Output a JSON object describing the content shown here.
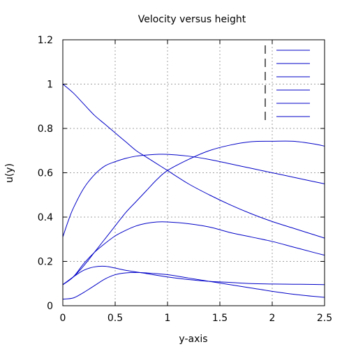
{
  "chart_data": {
    "type": "line",
    "title": "Velocity versus height",
    "xlabel": "y-axis",
    "ylabel": "u(y)",
    "xlim": [
      0,
      2.5
    ],
    "ylim": [
      0,
      1.2
    ],
    "xticks": [
      "0",
      "0.5",
      "1",
      "1.5",
      "2",
      "2.5"
    ],
    "yticks": [
      "0",
      "0.2",
      "0.4",
      "0.6",
      "0.8",
      "1",
      "1.2"
    ],
    "grid": true,
    "legend_position": "top-right",
    "line_color": "#0000c8",
    "series": [
      {
        "x": [
          0,
          0.1,
          0.2,
          0.3,
          0.4,
          0.5,
          0.6,
          0.7,
          0.8,
          0.9,
          1.0,
          1.2,
          1.4,
          1.6,
          1.8,
          2.0,
          2.2,
          2.4,
          2.5
        ],
        "values": [
          1.0,
          0.96,
          0.91,
          0.86,
          0.82,
          0.78,
          0.74,
          0.7,
          0.67,
          0.64,
          0.61,
          0.55,
          0.5,
          0.455,
          0.415,
          0.38,
          0.35,
          0.32,
          0.305
        ]
      },
      {
        "x": [
          0,
          0.05,
          0.1,
          0.2,
          0.3,
          0.4,
          0.5,
          0.6,
          0.7,
          0.8,
          0.9,
          1.0,
          1.2,
          1.4,
          1.6,
          1.8,
          2.0,
          2.2,
          2.4,
          2.5
        ],
        "values": [
          0.31,
          0.38,
          0.44,
          0.53,
          0.59,
          0.63,
          0.65,
          0.665,
          0.675,
          0.68,
          0.683,
          0.683,
          0.675,
          0.66,
          0.64,
          0.62,
          0.6,
          0.58,
          0.56,
          0.55
        ]
      },
      {
        "x": [
          0,
          0.1,
          0.2,
          0.3,
          0.4,
          0.5,
          0.6,
          0.7,
          0.8,
          0.9,
          1.0,
          1.2,
          1.4,
          1.6,
          1.8,
          2.0,
          2.2,
          2.4,
          2.5
        ],
        "values": [
          0.095,
          0.13,
          0.18,
          0.24,
          0.3,
          0.36,
          0.42,
          0.47,
          0.52,
          0.57,
          0.61,
          0.66,
          0.7,
          0.725,
          0.74,
          0.742,
          0.742,
          0.73,
          0.72
        ]
      },
      {
        "x": [
          0,
          0.1,
          0.2,
          0.3,
          0.4,
          0.5,
          0.6,
          0.7,
          0.8,
          0.9,
          1.0,
          1.2,
          1.4,
          1.6,
          1.8,
          2.0,
          2.2,
          2.4,
          2.5
        ],
        "values": [
          0.095,
          0.13,
          0.19,
          0.24,
          0.28,
          0.315,
          0.34,
          0.36,
          0.372,
          0.378,
          0.378,
          0.37,
          0.355,
          0.33,
          0.31,
          0.29,
          0.265,
          0.24,
          0.228
        ]
      },
      {
        "x": [
          0,
          0.1,
          0.2,
          0.3,
          0.4,
          0.5,
          0.6,
          0.8,
          1.0,
          1.2,
          1.4,
          1.6,
          1.8,
          2.0,
          2.2,
          2.4,
          2.5
        ],
        "values": [
          0.095,
          0.13,
          0.16,
          0.175,
          0.178,
          0.17,
          0.16,
          0.145,
          0.13,
          0.118,
          0.11,
          0.105,
          0.1,
          0.098,
          0.097,
          0.096,
          0.095
        ]
      },
      {
        "x": [
          0,
          0.1,
          0.2,
          0.3,
          0.4,
          0.5,
          0.6,
          0.7,
          0.8,
          1.0,
          1.2,
          1.4,
          1.6,
          1.8,
          2.0,
          2.2,
          2.4,
          2.5
        ],
        "values": [
          0.03,
          0.035,
          0.06,
          0.09,
          0.12,
          0.14,
          0.148,
          0.15,
          0.148,
          0.14,
          0.125,
          0.11,
          0.095,
          0.08,
          0.065,
          0.052,
          0.042,
          0.038
        ]
      }
    ]
  }
}
